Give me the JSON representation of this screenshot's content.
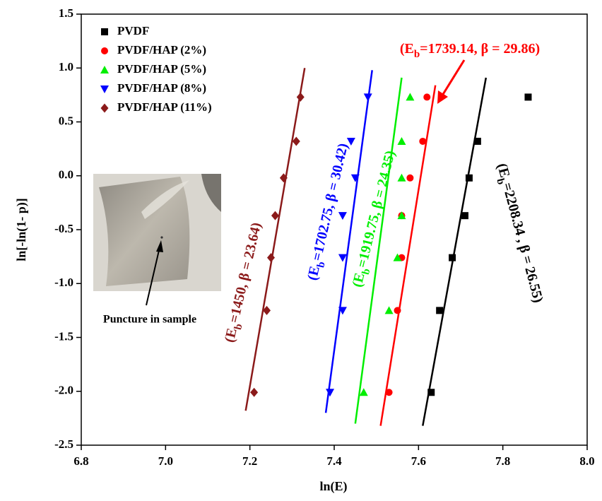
{
  "chart_data": {
    "type": "scatter",
    "x_label": "ln(E)",
    "y_label": "ln[-ln(1- p)]",
    "xlim": [
      6.8,
      8.0
    ],
    "xticks": [
      6.8,
      {
        "value": 7,
        "label": "7.0"
      },
      7.2,
      7.4,
      7.6,
      7.8,
      {
        "value": 8,
        "label": "8.0"
      }
    ],
    "ylim": [
      -2.5,
      1.5
    ],
    "yticks": [
      -2.5,
      {
        "value": -2,
        "label": "-2.0"
      },
      -1.5,
      {
        "value": -1,
        "label": "-1.0"
      },
      -0.5,
      {
        "value": 0,
        "label": "0.0"
      },
      0.5,
      {
        "value": 1,
        "label": "1.0"
      },
      1.5
    ],
    "series": [
      {
        "name": "PVDF",
        "color": "#000000",
        "marker": "square",
        "x": [
          7.63,
          7.65,
          7.68,
          7.71,
          7.72,
          7.74,
          7.86
        ],
        "values": [
          -2.01,
          -1.25,
          -0.76,
          -0.37,
          -0.02,
          0.32,
          0.73
        ],
        "fit_x": [
          7.61,
          7.76
        ],
        "fit_y": [
          -2.32,
          0.91
        ]
      },
      {
        "name": "PVDF/HAP (2%)",
        "color": "#ff0000",
        "marker": "circle",
        "x": [
          7.53,
          7.55,
          7.56,
          7.56,
          7.58,
          7.61,
          7.62
        ],
        "values": [
          -2.01,
          -1.25,
          -0.76,
          -0.37,
          -0.02,
          0.32,
          0.73
        ],
        "fit_x": [
          7.51,
          7.64
        ],
        "fit_y": [
          -2.32,
          0.84
        ]
      },
      {
        "name": "PVDF/HAP (5%)",
        "color": "#00ee00",
        "marker": "triangle-up",
        "x": [
          7.47,
          7.53,
          7.55,
          7.56,
          7.56,
          7.56,
          7.58
        ],
        "values": [
          -2.01,
          -1.25,
          -0.76,
          -0.37,
          -0.02,
          0.32,
          0.73
        ],
        "fit_x": [
          7.45,
          7.56
        ],
        "fit_y": [
          -2.3,
          0.91
        ]
      },
      {
        "name": "PVDF/HAP (8%)",
        "color": "#0000ff",
        "marker": "triangle-down",
        "x": [
          7.39,
          7.42,
          7.42,
          7.42,
          7.45,
          7.44,
          7.48
        ],
        "values": [
          -2.01,
          -1.25,
          -0.76,
          -0.37,
          -0.02,
          0.32,
          0.73
        ],
        "fit_x": [
          7.38,
          7.49
        ],
        "fit_y": [
          -2.2,
          0.98
        ]
      },
      {
        "name": "PVDF/HAP (11%)",
        "color": "#8b1a1a",
        "marker": "diamond",
        "x": [
          7.21,
          7.24,
          7.25,
          7.26,
          7.28,
          7.31,
          7.32
        ],
        "values": [
          -2.01,
          -1.25,
          -0.76,
          -0.37,
          -0.02,
          0.32,
          0.73
        ],
        "fit_x": [
          7.19,
          7.33
        ],
        "fit_y": [
          -2.18,
          1.0
        ]
      }
    ],
    "annotations": [
      {
        "parts": [
          "(E",
          "b",
          "=2208.34 , β = 26.55)"
        ],
        "color": "#000000"
      },
      {
        "parts": [
          "(E",
          "b",
          "=1739.14, β = 29.86)"
        ],
        "color": "#ff0000"
      },
      {
        "parts": [
          "(E",
          "b",
          "=1919.75, β = 24.35)"
        ],
        "color": "#00ee00"
      },
      {
        "parts": [
          "(E",
          "b",
          "=1702.75, β = 30.42)"
        ],
        "color": "#0000ff"
      },
      {
        "parts": [
          "(E",
          "b",
          "=1450, β = 23.64)"
        ],
        "color": "#8b1a1a"
      }
    ],
    "inset_caption": "Puncture in sample"
  }
}
